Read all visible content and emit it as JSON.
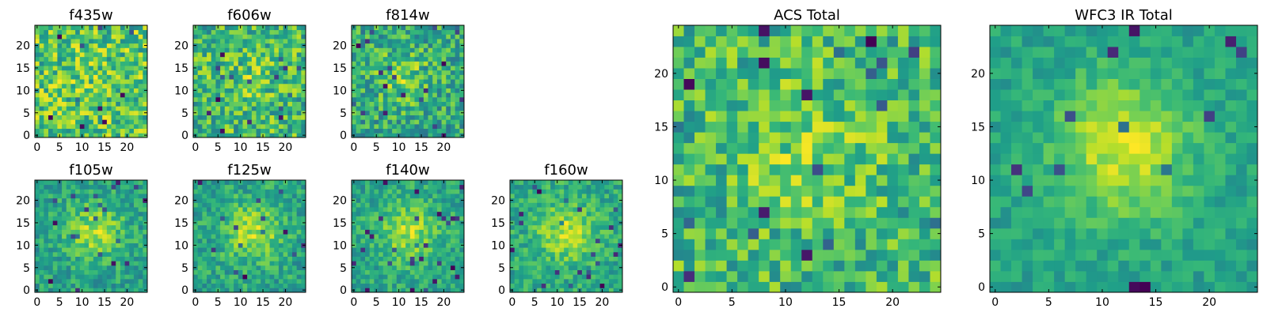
{
  "chart_data": [
    {
      "type": "heatmap",
      "title": "f435w",
      "x_ticks": [
        "0",
        "5",
        "10",
        "15",
        "20"
      ],
      "y_ticks": [
        "0",
        "5",
        "10",
        "15",
        "20"
      ],
      "xlim": [
        0,
        25
      ],
      "ylim": [
        0,
        25
      ],
      "colormap": "viridis",
      "peak": [
        12,
        12
      ],
      "peak_strength": 0.05,
      "noise": 0.3,
      "seed": 11
    },
    {
      "type": "heatmap",
      "title": "f606w",
      "x_ticks": [
        "0",
        "5",
        "10",
        "15",
        "20"
      ],
      "y_ticks": [
        "0",
        "5",
        "10",
        "15",
        "20"
      ],
      "xlim": [
        0,
        25
      ],
      "ylim": [
        0,
        25
      ],
      "colormap": "viridis",
      "peak": [
        12,
        13
      ],
      "peak_strength": 0.15,
      "noise": 0.3,
      "seed": 23
    },
    {
      "type": "heatmap",
      "title": "f814w",
      "x_ticks": [
        "0",
        "5",
        "10",
        "15",
        "20"
      ],
      "y_ticks": [
        "0",
        "5",
        "10",
        "15",
        "20"
      ],
      "xlim": [
        0,
        25
      ],
      "ylim": [
        0,
        25
      ],
      "colormap": "viridis",
      "peak": [
        11,
        13
      ],
      "peak_strength": 0.3,
      "noise": 0.28,
      "seed": 37
    },
    {
      "type": "heatmap",
      "title": "f105w",
      "x_ticks": [
        "0",
        "5",
        "10",
        "15",
        "20"
      ],
      "y_ticks": [
        "0",
        "5",
        "10",
        "15",
        "20"
      ],
      "xlim": [
        0,
        25
      ],
      "ylim": [
        0,
        25
      ],
      "colormap": "viridis",
      "peak": [
        13,
        13
      ],
      "peak_strength": 0.45,
      "noise": 0.18,
      "seed": 41
    },
    {
      "type": "heatmap",
      "title": "f125w",
      "x_ticks": [
        "0",
        "5",
        "10",
        "15",
        "20"
      ],
      "y_ticks": [
        "0",
        "5",
        "10",
        "15",
        "20"
      ],
      "xlim": [
        0,
        25
      ],
      "ylim": [
        0,
        25
      ],
      "colormap": "viridis",
      "peak": [
        13,
        13
      ],
      "peak_strength": 0.45,
      "noise": 0.18,
      "seed": 53
    },
    {
      "type": "heatmap",
      "title": "f140w",
      "x_ticks": [
        "0",
        "5",
        "10",
        "15",
        "20"
      ],
      "y_ticks": [
        "0",
        "5",
        "10",
        "15",
        "20"
      ],
      "xlim": [
        0,
        25
      ],
      "ylim": [
        0,
        25
      ],
      "colormap": "viridis",
      "peak": [
        12,
        13
      ],
      "peak_strength": 0.45,
      "noise": 0.18,
      "seed": 67
    },
    {
      "type": "heatmap",
      "title": "f160w",
      "x_ticks": [
        "0",
        "5",
        "10",
        "15",
        "20"
      ],
      "y_ticks": [
        "0",
        "5",
        "10",
        "15",
        "20"
      ],
      "xlim": [
        0,
        25
      ],
      "ylim": [
        0,
        25
      ],
      "colormap": "viridis",
      "peak": [
        12,
        13
      ],
      "peak_strength": 0.45,
      "noise": 0.18,
      "seed": 71
    },
    {
      "type": "heatmap",
      "title": "ACS Total",
      "x_ticks": [
        "0",
        "5",
        "10",
        "15",
        "20"
      ],
      "y_ticks": [
        "0",
        "5",
        "10",
        "15",
        "20"
      ],
      "xlim": [
        0,
        25
      ],
      "ylim": [
        0,
        25
      ],
      "colormap": "viridis",
      "peak": [
        12,
        13
      ],
      "peak_strength": 0.2,
      "noise": 0.25,
      "seed": 89
    },
    {
      "type": "heatmap",
      "title": "WFC3 IR Total",
      "x_ticks": [
        "0",
        "5",
        "10",
        "15",
        "20"
      ],
      "y_ticks": [
        "0",
        "5",
        "10",
        "15",
        "20"
      ],
      "xlim": [
        0,
        25
      ],
      "ylim": [
        0,
        25
      ],
      "colormap": "viridis",
      "peak": [
        12,
        13
      ],
      "peak_strength": 0.55,
      "noise": 0.12,
      "seed": 97
    }
  ]
}
